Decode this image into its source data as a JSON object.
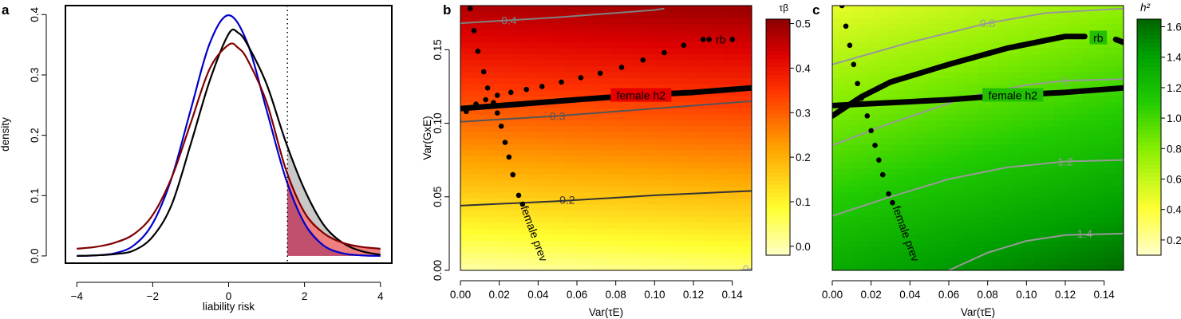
{
  "chart_data": [
    {
      "panel_label": "a",
      "type": "line",
      "xlabel": "liability risk",
      "ylabel": "density",
      "xlim": [
        -4.3,
        4.3
      ],
      "ylim": [
        -0.012,
        0.415
      ],
      "xticks": [
        -4,
        -2,
        0,
        2,
        4
      ],
      "xtick_labels": [
        "−4",
        "−2",
        "0",
        "2",
        "4"
      ],
      "yticks": [
        0.0,
        0.1,
        0.2,
        0.3,
        0.4
      ],
      "ytick_labels": [
        "0.0",
        "0.1",
        "0.2",
        "0.3",
        "0.4"
      ],
      "threshold_x": 1.55,
      "series": [
        {
          "color": "#0000cc",
          "points": [
            [
              -4,
              0.0001
            ],
            [
              -3.5,
              0.0009
            ],
            [
              -3,
              0.0044
            ],
            [
              -2.5,
              0.0175
            ],
            [
              -2,
              0.054
            ],
            [
              -1.5,
              0.1295
            ],
            [
              -1,
              0.242
            ],
            [
              -0.5,
              0.352
            ],
            [
              0,
              0.399
            ],
            [
              0.5,
              0.352
            ],
            [
              1,
              0.242
            ],
            [
              1.5,
              0.1295
            ],
            [
              2,
              0.054
            ],
            [
              2.5,
              0.0175
            ],
            [
              3,
              0.0044
            ],
            [
              3.5,
              0.0009
            ],
            [
              4,
              0.0001
            ]
          ]
        },
        {
          "color": "#000000",
          "points": [
            [
              -4,
              0.0
            ],
            [
              -3.5,
              0.001
            ],
            [
              -3,
              0.003
            ],
            [
              -2.5,
              0.009
            ],
            [
              -2,
              0.032
            ],
            [
              -1.5,
              0.085
            ],
            [
              -1,
              0.185
            ],
            [
              -0.5,
              0.29
            ],
            [
              0,
              0.368
            ],
            [
              0.25,
              0.37
            ],
            [
              0.5,
              0.35
            ],
            [
              1,
              0.285
            ],
            [
              1.5,
              0.19
            ],
            [
              2,
              0.11
            ],
            [
              2.5,
              0.052
            ],
            [
              3,
              0.022
            ],
            [
              3.5,
              0.008
            ],
            [
              4,
              0.002
            ]
          ]
        },
        {
          "color": "#800000",
          "points": [
            [
              -4,
              0.012
            ],
            [
              -3.5,
              0.015
            ],
            [
              -3,
              0.022
            ],
            [
              -2.5,
              0.036
            ],
            [
              -2,
              0.068
            ],
            [
              -1.5,
              0.13
            ],
            [
              -1,
              0.22
            ],
            [
              -0.5,
              0.31
            ],
            [
              0,
              0.35
            ],
            [
              0.25,
              0.345
            ],
            [
              0.5,
              0.325
            ],
            [
              1,
              0.255
            ],
            [
              1.5,
              0.145
            ],
            [
              2,
              0.072
            ],
            [
              2.5,
              0.038
            ],
            [
              3,
              0.022
            ],
            [
              3.5,
              0.015
            ],
            [
              4,
              0.012
            ]
          ]
        }
      ],
      "fills": [
        {
          "color": "#c8c8c8",
          "top_series": 1,
          "from_x": 1.55
        },
        {
          "color": "#f08080",
          "top_series": 2,
          "from_x": 1.55
        },
        {
          "color": "#c0506e",
          "top_series": 0,
          "from_x": 1.55
        }
      ]
    },
    {
      "panel_label": "b",
      "type": "heatmap",
      "xlabel": "Var(τE)",
      "ylabel": "Var(GxE)",
      "xlim": [
        0,
        0.15
      ],
      "ylim": [
        0,
        0.18
      ],
      "xticks": [
        0.0,
        0.02,
        0.04,
        0.06,
        0.08,
        0.1,
        0.12,
        0.14
      ],
      "xtick_labels": [
        "0.00",
        "0.02",
        "0.04",
        "0.06",
        "0.08",
        "0.10",
        "0.12",
        "0.14"
      ],
      "yticks": [
        0.0,
        0.05,
        0.1,
        0.15
      ],
      "ytick_labels": [
        "0.00",
        "0.05",
        "0.10",
        "0.15"
      ],
      "colorbar": {
        "title": "τβ",
        "range": [
          -0.02,
          0.51
        ],
        "ticks": [
          0.0,
          0.1,
          0.2,
          0.3,
          0.4,
          0.5
        ],
        "tick_labels": [
          "0.0",
          "0.1",
          "0.2",
          "0.3",
          "0.4",
          "0.5"
        ],
        "stops": [
          [
            0.0,
            "#ffffc8"
          ],
          [
            0.2,
            "#ffff30"
          ],
          [
            0.45,
            "#ffa500"
          ],
          [
            0.7,
            "#ff3300"
          ],
          [
            0.85,
            "#dd0000"
          ],
          [
            1.0,
            "#8b0000"
          ]
        ]
      },
      "contours": [
        {
          "label": "0.4",
          "color": "#808080",
          "points": [
            [
              0.0,
              0.168
            ],
            [
              0.05,
              0.172
            ],
            [
              0.1,
              0.177
            ],
            [
              0.105,
              0.178
            ]
          ],
          "label_at": [
            0.025,
            0.17
          ]
        },
        {
          "label": "0.3",
          "color": "#555555",
          "points": [
            [
              0.0,
              0.101
            ],
            [
              0.05,
              0.105
            ],
            [
              0.1,
              0.11
            ],
            [
              0.15,
              0.115
            ]
          ],
          "label_at": [
            0.05,
            0.105
          ]
        },
        {
          "label": "0.2",
          "color": "#333333",
          "points": [
            [
              0.0,
              0.044
            ],
            [
              0.05,
              0.047
            ],
            [
              0.1,
              0.051
            ],
            [
              0.15,
              0.054
            ]
          ],
          "label_at": [
            0.055,
            0.048
          ]
        },
        {
          "label": "0",
          "color": "#aaaaaa",
          "points": [
            [
              0.144,
              0.0
            ],
            [
              0.15,
              0.001
            ]
          ],
          "label_at": [
            0.147,
            0.001
          ]
        }
      ],
      "black_curves": [
        {
          "label": "female h2",
          "points": [
            [
              0.0,
              0.11
            ],
            [
              0.03,
              0.113
            ],
            [
              0.06,
              0.116
            ],
            [
              0.09,
              0.119
            ],
            [
              0.12,
              0.121
            ],
            [
              0.15,
              0.124
            ]
          ],
          "label_at": [
            0.093,
            0.119
          ]
        }
      ],
      "dotted_curves": [
        {
          "label": "rb",
          "points": [
            [
              -0.001,
              0.102
            ],
            [
              0.003,
              0.108
            ],
            [
              0.008,
              0.113
            ],
            [
              0.013,
              0.116
            ],
            [
              0.019,
              0.119
            ],
            [
              0.026,
              0.121
            ],
            [
              0.034,
              0.123
            ],
            [
              0.042,
              0.125
            ],
            [
              0.052,
              0.128
            ],
            [
              0.062,
              0.131
            ],
            [
              0.072,
              0.134
            ],
            [
              0.083,
              0.138
            ],
            [
              0.094,
              0.143
            ],
            [
              0.105,
              0.148
            ],
            [
              0.115,
              0.153
            ],
            [
              0.125,
              0.157
            ],
            [
              0.128,
              0.157
            ],
            [
              0.14,
              0.157
            ]
          ],
          "label_at": [
            0.134,
            0.157
          ]
        },
        {
          "label": "female prev",
          "points": [
            [
              0.005,
              0.178
            ],
            [
              0.007,
              0.163
            ],
            [
              0.009,
              0.149
            ],
            [
              0.012,
              0.135
            ],
            [
              0.014,
              0.124
            ],
            [
              0.017,
              0.114
            ],
            [
              0.019,
              0.107
            ],
            [
              0.021,
              0.098
            ],
            [
              0.023,
              0.087
            ],
            [
              0.025,
              0.077
            ],
            [
              0.027,
              0.065
            ],
            [
              0.03,
              0.051
            ],
            [
              0.032,
              0.045
            ]
          ],
          "label_rotation": 70,
          "label_at": [
            0.038,
            0.025
          ]
        }
      ]
    },
    {
      "panel_label": "c",
      "type": "heatmap",
      "xlabel": "Var(τE)",
      "ylabel": "",
      "xlim": [
        0,
        0.15
      ],
      "ylim": [
        0,
        0.18
      ],
      "xticks": [
        0.0,
        0.02,
        0.04,
        0.06,
        0.08,
        0.1,
        0.12,
        0.14
      ],
      "xtick_labels": [
        "0.00",
        "0.02",
        "0.04",
        "0.06",
        "0.08",
        "0.10",
        "0.12",
        "0.14"
      ],
      "colorbar": {
        "title": "h²",
        "range": [
          0.1,
          1.65
        ],
        "ticks": [
          0.2,
          0.4,
          0.6,
          0.8,
          1.0,
          1.2,
          1.4,
          1.6
        ],
        "tick_labels": [
          "0.2",
          "0.4",
          "0.6",
          "0.8",
          "1.0",
          "1.2",
          "1.4",
          "1.6"
        ],
        "stops": [
          [
            0.0,
            "#ffffcc"
          ],
          [
            0.2,
            "#ffff33"
          ],
          [
            0.45,
            "#88ee00"
          ],
          [
            0.65,
            "#22cc00"
          ],
          [
            0.85,
            "#00a000"
          ],
          [
            1.0,
            "#006400"
          ]
        ]
      },
      "contours": [
        {
          "label": "0.8",
          "color": "#999999",
          "points": [
            [
              0.0,
              0.14
            ],
            [
              0.04,
              0.155
            ],
            [
              0.08,
              0.168
            ],
            [
              0.11,
              0.175
            ],
            [
              0.15,
              0.178
            ]
          ],
          "label_at": [
            0.08,
            0.168
          ]
        },
        {
          "label": "1",
          "color": "#999999",
          "points": [
            [
              0.0,
              0.085
            ],
            [
              0.03,
              0.1
            ],
            [
              0.07,
              0.118
            ],
            [
              0.1,
              0.126
            ],
            [
              0.12,
              0.129
            ],
            [
              0.15,
              0.13
            ]
          ],
          "label_at": [
            0.12,
            0.129
          ]
        },
        {
          "label": "1.2",
          "color": "#999999",
          "points": [
            [
              0.0,
              0.037
            ],
            [
              0.03,
              0.05
            ],
            [
              0.06,
              0.062
            ],
            [
              0.09,
              0.07
            ],
            [
              0.12,
              0.074
            ],
            [
              0.15,
              0.075
            ]
          ],
          "label_at": [
            0.12,
            0.074
          ]
        },
        {
          "label": "1.4",
          "color": "#999999",
          "points": [
            [
              0.06,
              0.0
            ],
            [
              0.08,
              0.012
            ],
            [
              0.1,
              0.02
            ],
            [
              0.12,
              0.024
            ],
            [
              0.15,
              0.025
            ]
          ],
          "label_at": [
            0.13,
            0.025
          ]
        }
      ],
      "black_curves": [
        {
          "label": "female h2",
          "points": [
            [
              0.0,
              0.112
            ],
            [
              0.03,
              0.114
            ],
            [
              0.06,
              0.116
            ],
            [
              0.09,
              0.119
            ],
            [
              0.12,
              0.121
            ],
            [
              0.15,
              0.124
            ]
          ],
          "label_at": [
            0.093,
            0.119
          ]
        },
        {
          "label": "rb",
          "points": [
            [
              0.0,
              0.105
            ],
            [
              0.015,
              0.118
            ],
            [
              0.03,
              0.128
            ],
            [
              0.06,
              0.14
            ],
            [
              0.09,
              0.151
            ],
            [
              0.12,
              0.159
            ],
            [
              0.13,
              0.159
            ]
          ],
          "label_at": [
            0.137,
            0.158
          ]
        },
        {
          "points": [
            [
              0.146,
              0.157
            ],
            [
              0.15,
              0.155
            ]
          ]
        }
      ],
      "dotted_curves": [
        {
          "label": "female prev",
          "points": [
            [
              0.005,
              0.18
            ],
            [
              0.007,
              0.166
            ],
            [
              0.009,
              0.153
            ],
            [
              0.011,
              0.14
            ],
            [
              0.013,
              0.127
            ],
            [
              0.015,
              0.117
            ],
            [
              0.018,
              0.105
            ],
            [
              0.02,
              0.095
            ],
            [
              0.022,
              0.085
            ],
            [
              0.024,
              0.075
            ],
            [
              0.026,
              0.065
            ],
            [
              0.029,
              0.052
            ],
            [
              0.031,
              0.046
            ]
          ],
          "label_rotation": 70,
          "label_at": [
            0.038,
            0.025
          ]
        }
      ]
    }
  ]
}
